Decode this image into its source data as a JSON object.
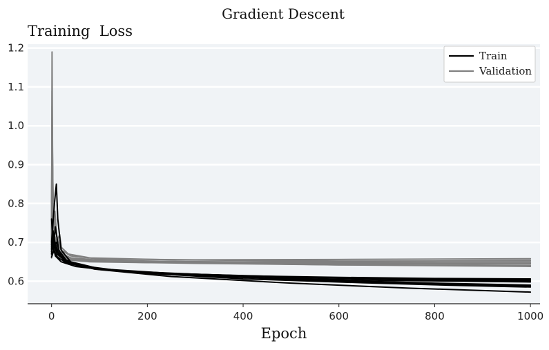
{
  "chart_data": {
    "type": "line",
    "title": "Gradient Descent",
    "ylabel": "Training  Loss",
    "xlabel": "Epoch",
    "xlim": [
      -50,
      1020
    ],
    "ylim": [
      0.542,
      1.21
    ],
    "xticks": [
      0,
      200,
      400,
      600,
      800,
      1000
    ],
    "yticks": [
      0.6,
      0.7,
      0.8,
      0.9,
      1.0,
      1.1,
      1.2
    ],
    "ytick_labels": [
      "0.6",
      "0.7",
      "0.8",
      "0.9",
      "1.0",
      "1.1",
      "1.2"
    ],
    "grid": "horizontal",
    "background": "#f0f3f6",
    "legend": {
      "position": "top-right",
      "entries": [
        "Train",
        "Validation"
      ]
    },
    "colors": {
      "Train": "#000000",
      "Validation": "#808080"
    },
    "series": [
      {
        "name": "Train",
        "runs": [
          [
            [
              0,
              0.69
            ],
            [
              2,
              0.7
            ],
            [
              5,
              0.69
            ],
            [
              10,
              0.7
            ],
            [
              20,
              0.665
            ],
            [
              40,
              0.645
            ],
            [
              100,
              0.63
            ],
            [
              200,
              0.622
            ],
            [
              400,
              0.614
            ],
            [
              600,
              0.61
            ],
            [
              800,
              0.607
            ],
            [
              1000,
              0.606
            ]
          ],
          [
            [
              0,
              0.682
            ],
            [
              2,
              0.72
            ],
            [
              5,
              0.7
            ],
            [
              8,
              0.74
            ],
            [
              15,
              0.68
            ],
            [
              30,
              0.655
            ],
            [
              60,
              0.64
            ],
            [
              150,
              0.626
            ],
            [
              300,
              0.615
            ],
            [
              500,
              0.607
            ],
            [
              700,
              0.602
            ],
            [
              1000,
              0.598
            ]
          ],
          [
            [
              0,
              0.7
            ],
            [
              3,
              0.75
            ],
            [
              6,
              0.8
            ],
            [
              10,
              0.85
            ],
            [
              13,
              0.76
            ],
            [
              20,
              0.68
            ],
            [
              40,
              0.65
            ],
            [
              100,
              0.632
            ],
            [
              250,
              0.62
            ],
            [
              500,
              0.61
            ],
            [
              750,
              0.604
            ],
            [
              1000,
              0.6
            ]
          ],
          [
            [
              0,
              0.67
            ],
            [
              3,
              0.69
            ],
            [
              8,
              0.665
            ],
            [
              20,
              0.65
            ],
            [
              50,
              0.638
            ],
            [
              120,
              0.628
            ],
            [
              300,
              0.618
            ],
            [
              500,
              0.611
            ],
            [
              750,
              0.606
            ],
            [
              1000,
              0.603
            ]
          ],
          [
            [
              0,
              0.676
            ],
            [
              4,
              0.71
            ],
            [
              10,
              0.68
            ],
            [
              25,
              0.655
            ],
            [
              60,
              0.637
            ],
            [
              150,
              0.625
            ],
            [
              350,
              0.612
            ],
            [
              600,
              0.602
            ],
            [
              800,
              0.595
            ],
            [
              1000,
              0.59
            ]
          ],
          [
            [
              0,
              0.662
            ],
            [
              5,
              0.68
            ],
            [
              12,
              0.662
            ],
            [
              30,
              0.648
            ],
            [
              70,
              0.636
            ],
            [
              180,
              0.622
            ],
            [
              400,
              0.606
            ],
            [
              650,
              0.596
            ],
            [
              850,
              0.589
            ],
            [
              1000,
              0.585
            ]
          ],
          [
            [
              0,
              0.694
            ],
            [
              3,
              0.73
            ],
            [
              7,
              0.7
            ],
            [
              15,
              0.67
            ],
            [
              35,
              0.648
            ],
            [
              90,
              0.631
            ],
            [
              250,
              0.612
            ],
            [
              500,
              0.595
            ],
            [
              750,
              0.582
            ],
            [
              1000,
              0.572
            ]
          ],
          [
            [
              0,
              0.76
            ],
            [
              2,
              0.72
            ],
            [
              5,
              0.69
            ],
            [
              12,
              0.67
            ],
            [
              30,
              0.65
            ],
            [
              80,
              0.634
            ],
            [
              200,
              0.62
            ],
            [
              450,
              0.607
            ],
            [
              700,
              0.596
            ],
            [
              1000,
              0.588
            ]
          ]
        ]
      },
      {
        "name": "Validation",
        "runs": [
          [
            [
              0,
              0.7
            ],
            [
              1,
              1.19
            ],
            [
              2,
              0.95
            ],
            [
              3,
              0.8
            ],
            [
              5,
              0.74
            ],
            [
              8,
              0.76
            ],
            [
              12,
              0.7
            ],
            [
              20,
              0.68
            ],
            [
              40,
              0.665
            ],
            [
              100,
              0.657
            ],
            [
              300,
              0.655
            ],
            [
              600,
              0.656
            ],
            [
              1000,
              0.658
            ]
          ],
          [
            [
              0,
              0.69
            ],
            [
              1,
              1.09
            ],
            [
              2,
              0.9
            ],
            [
              4,
              0.76
            ],
            [
              7,
              0.78
            ],
            [
              10,
              0.72
            ],
            [
              18,
              0.69
            ],
            [
              35,
              0.67
            ],
            [
              80,
              0.66
            ],
            [
              250,
              0.655
            ],
            [
              600,
              0.652
            ],
            [
              1000,
              0.652
            ]
          ],
          [
            [
              0,
              0.8
            ],
            [
              1,
              1.02
            ],
            [
              3,
              0.83
            ],
            [
              6,
              0.72
            ],
            [
              10,
              0.7
            ],
            [
              17,
              0.72
            ],
            [
              22,
              0.67
            ],
            [
              40,
              0.66
            ],
            [
              100,
              0.654
            ],
            [
              400,
              0.648
            ],
            [
              700,
              0.648
            ],
            [
              1000,
              0.648
            ]
          ],
          [
            [
              0,
              0.72
            ],
            [
              1,
              0.93
            ],
            [
              3,
              0.77
            ],
            [
              6,
              0.69
            ],
            [
              12,
              0.67
            ],
            [
              25,
              0.66
            ],
            [
              60,
              0.652
            ],
            [
              200,
              0.648
            ],
            [
              500,
              0.645
            ],
            [
              1000,
              0.644
            ]
          ],
          [
            [
              0,
              0.66
            ],
            [
              1,
              0.86
            ],
            [
              3,
              0.74
            ],
            [
              6,
              0.68
            ],
            [
              12,
              0.665
            ],
            [
              30,
              0.655
            ],
            [
              80,
              0.65
            ],
            [
              300,
              0.646
            ],
            [
              600,
              0.642
            ],
            [
              1000,
              0.64
            ]
          ],
          [
            [
              0,
              0.7
            ],
            [
              1,
              1.05
            ],
            [
              2,
              0.86
            ],
            [
              4,
              0.73
            ],
            [
              8,
              0.69
            ],
            [
              15,
              0.675
            ],
            [
              30,
              0.66
            ],
            [
              70,
              0.653
            ],
            [
              250,
              0.648
            ],
            [
              600,
              0.642
            ],
            [
              1000,
              0.638
            ]
          ],
          [
            [
              0,
              0.67
            ],
            [
              1,
              0.9
            ],
            [
              3,
              0.76
            ],
            [
              6,
              0.7
            ],
            [
              12,
              0.68
            ],
            [
              24,
              0.665
            ],
            [
              50,
              0.657
            ],
            [
              150,
              0.651
            ],
            [
              400,
              0.65
            ],
            [
              800,
              0.652
            ],
            [
              1000,
              0.654
            ]
          ],
          [
            [
              0,
              0.69
            ],
            [
              1,
              0.98
            ],
            [
              2,
              0.82
            ],
            [
              4,
              0.71
            ],
            [
              9,
              0.69
            ],
            [
              18,
              0.672
            ],
            [
              40,
              0.66
            ],
            [
              120,
              0.652
            ],
            [
              400,
              0.648
            ],
            [
              800,
              0.647
            ],
            [
              1000,
              0.646
            ]
          ]
        ]
      }
    ]
  }
}
